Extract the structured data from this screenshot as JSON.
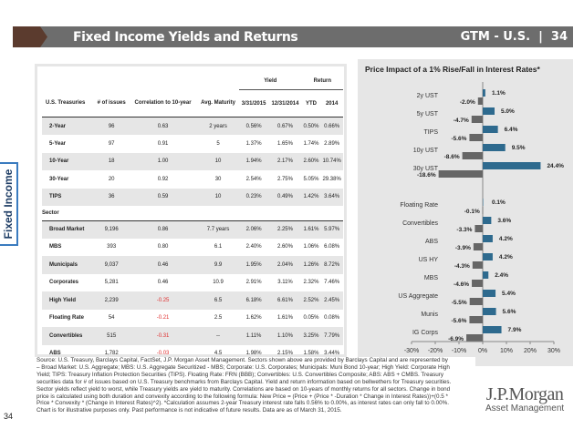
{
  "header": {
    "title": "Fixed Income Yields and Returns",
    "right": "GTM - U.S.  |  34"
  },
  "side_tab": "Fixed Income",
  "table": {
    "group_headers": {
      "yield": "Yield",
      "return": "Return"
    },
    "columns": [
      "U.S. Treasuries",
      "# of issues",
      "Correlation to 10-year",
      "Avg. Maturity",
      "3/31/2015",
      "12/31/2014",
      "YTD",
      "2014"
    ],
    "treasuries": [
      [
        "2-Year",
        "96",
        "0.63",
        "2 years",
        "0.56%",
        "0.67%",
        "0.50%",
        "0.66%"
      ],
      [
        "5-Year",
        "97",
        "0.91",
        "5",
        "1.37%",
        "1.65%",
        "1.74%",
        "2.89%"
      ],
      [
        "10-Year",
        "18",
        "1.00",
        "10",
        "1.94%",
        "2.17%",
        "2.60%",
        "10.74%"
      ],
      [
        "30-Year",
        "20",
        "0.92",
        "30",
        "2.54%",
        "2.75%",
        "5.05%",
        "29.38%"
      ],
      [
        "TIPS",
        "36",
        "0.59",
        "10",
        "0.23%",
        "0.49%",
        "1.42%",
        "3.64%"
      ]
    ],
    "sector_label": "Sector",
    "sectors": [
      [
        "Broad Market",
        "9,196",
        "0.86",
        "7.7 years",
        "2.06%",
        "2.25%",
        "1.61%",
        "5.97%"
      ],
      [
        "MBS",
        "393",
        "0.80",
        "6.1",
        "2.40%",
        "2.60%",
        "1.06%",
        "6.08%"
      ],
      [
        "Municipals",
        "9,037",
        "0.46",
        "9.9",
        "1.95%",
        "2.04%",
        "1.26%",
        "8.72%"
      ],
      [
        "Corporates",
        "5,281",
        "0.46",
        "10.9",
        "2.91%",
        "3.11%",
        "2.32%",
        "7.46%"
      ],
      [
        "High Yield",
        "2,239",
        "-0.25",
        "6.5",
        "6.18%",
        "6.61%",
        "2.52%",
        "2.45%"
      ],
      [
        "Floating Rate",
        "54",
        "-0.21",
        "2.5",
        "1.62%",
        "1.61%",
        "0.05%",
        "0.08%"
      ],
      [
        "Convertibles",
        "515",
        "-0.31",
        "--",
        "1.11%",
        "1.10%",
        "3.25%",
        "7.79%"
      ],
      [
        "ABS",
        "1,782",
        "-0.03",
        "4.5",
        "1.98%",
        "2.15%",
        "1.58%",
        "3.44%"
      ]
    ],
    "negative_color": "#e03030"
  },
  "chart_data": {
    "type": "bar",
    "orientation": "horizontal",
    "title": "Price Impact of a 1% Rise/Fall in Interest Rates*",
    "categories": [
      "2y UST",
      "5y UST",
      "TIPS",
      "10y UST",
      "30y UST",
      "",
      "Floating Rate",
      "Convertibles",
      "ABS",
      "US HY",
      "MBS",
      "US Aggregate",
      "Munis",
      "IG Corps"
    ],
    "series": [
      {
        "color": "#2e6a8e",
        "values": [
          1.1,
          5.0,
          6.4,
          9.5,
          24.4,
          null,
          0.1,
          3.6,
          4.2,
          4.2,
          2.4,
          5.4,
          5.6,
          7.9
        ],
        "labels": [
          "1.1%",
          "5.0%",
          "6.4%",
          "9.5%",
          "24.4%",
          "",
          "0.1%",
          "3.6%",
          "4.2%",
          "4.2%",
          "2.4%",
          "5.4%",
          "5.6%",
          "7.9%"
        ]
      },
      {
        "color": "#666666",
        "values": [
          -2.0,
          -4.7,
          -5.6,
          -8.6,
          -18.6,
          null,
          -0.1,
          -3.3,
          -3.9,
          -4.3,
          -4.6,
          -5.5,
          -5.6,
          -6.9
        ],
        "labels": [
          "-2.0%",
          "-4.7%",
          "-5.6%",
          "-8.6%",
          "-18.6%",
          "",
          "-0.1%",
          "-3.3%",
          "-3.9%",
          "-4.3%",
          "-4.6%",
          "-5.5%",
          "-5.6%",
          "-6.9%"
        ]
      }
    ],
    "xlim": [
      -30,
      30
    ],
    "xticks": [
      "-30%",
      "-20%",
      "-10%",
      "0%",
      "10%",
      "20%",
      "30%"
    ],
    "grid": false
  },
  "footnote": "Source: U.S. Treasury, Barclays Capital, FactSet, J.P. Morgan Asset Management. Sectors shown above are provided by Barclays Capital and are represented by – Broad Market: U.S. Aggregate; MBS: U.S. Aggregate Securitized - MBS; Corporate: U.S. Corporates; Municipals: Muni Bond 10-year; High Yield: Corporate High Yield; TIPS: Treasury Inflation Protection Securities (TIPS). Floating Rate: FRN (BBB); Convertibles: U.S. Convertibles Composite; ABS: ABS + CMBS. Treasury securities data for # of issues based on U.S. Treasury benchmarks from Barclays Capital. Yield and return information based on bellwethers for Treasury securities. Sector yields reflect yield to worst, while Treasury yields are yield to maturity. Correlations are based on 10-years of monthly returns for all sectors. Change in bond price is calculated using both duration and convexity according to the following formula: New Price = (Price + (Price * -Duration * Change in Interest Rates))+(0.5 * Price * Convexity * (Change in Interest Rates)^2). *Calculation assumes 2-year Treasury interest rate falls 0.56% to 0.00%, as interest rates can only fall to 0.00%. Chart is for illustrative purposes only. Past performance is not indicative of future results. Data are as of March 31, 2015.",
  "page_number": "34",
  "logo": {
    "line1": "J.P.Morgan",
    "line2": "Asset Management"
  }
}
